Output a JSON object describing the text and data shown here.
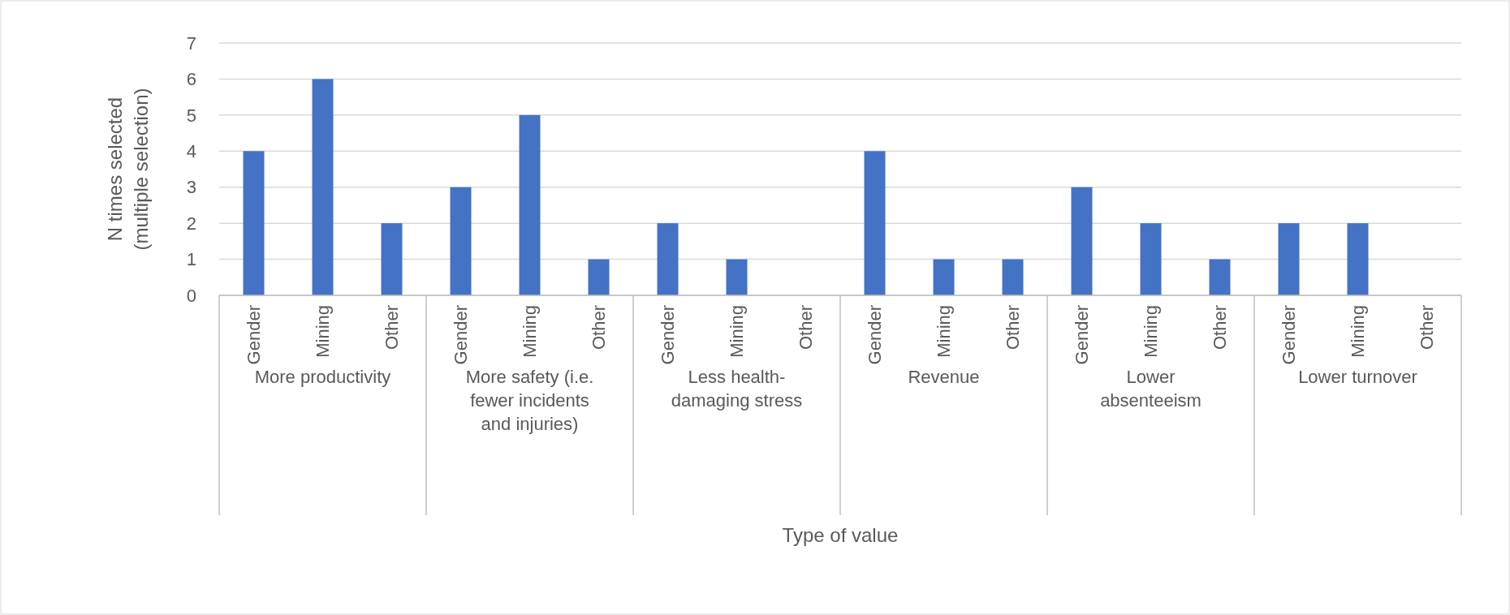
{
  "chart_data": {
    "type": "bar",
    "xlabel": "Type of value",
    "ylabel": "N times selected (multiple selection)",
    "categories": [
      "More productivity",
      "More safety (i.e. fewer incidents and injuries)",
      "Less health-damaging stress",
      "Revenue",
      "Lower absenteeism",
      "Lower turnover"
    ],
    "series": [
      {
        "name": "Gender",
        "color": "#4472c4",
        "values": [
          4,
          3,
          2,
          4,
          3,
          2
        ]
      },
      {
        "name": "Mining",
        "color": "#4472c4",
        "values": [
          6,
          5,
          1,
          1,
          2,
          2
        ]
      },
      {
        "name": "Other",
        "color": "#4472c4",
        "values": [
          2,
          1,
          0,
          1,
          1,
          0
        ]
      }
    ],
    "ylim": [
      0,
      7
    ],
    "yticks": [
      0,
      1,
      2,
      3,
      4,
      5,
      6,
      7
    ],
    "grid": "y"
  }
}
